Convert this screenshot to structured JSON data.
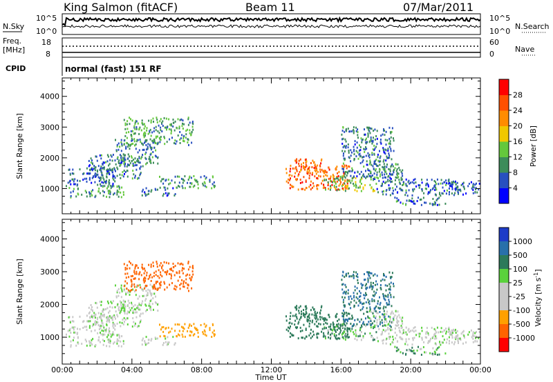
{
  "chart_data": {
    "title": {
      "station": "King Salmon (fitACF)",
      "beam": "Beam 11",
      "date": "07/Mar/2011"
    },
    "noise_panel": {
      "left_label": "N.Sky",
      "right_label": "N.Search",
      "left_ticks": [
        "10^5",
        "10^0"
      ],
      "right_ticks": [
        "10^5",
        "10^0"
      ]
    },
    "freq_panel": {
      "left_label_1": "Freq.",
      "left_label_2": "[MHz]",
      "right_label": "Nave",
      "left_ticks": [
        "18",
        "8"
      ],
      "right_ticks": [
        "60",
        "0"
      ]
    },
    "cpid_panel": {
      "label": "CPID",
      "text": "normal (fast) 151 RF"
    },
    "x_axis": {
      "label": "Time UT",
      "tick_labels": [
        "00:00",
        "04:00",
        "08:00",
        "12:00",
        "16:00",
        "20:00",
        "00:00"
      ],
      "range_hours": [
        0,
        24
      ]
    },
    "y_axis": {
      "label": "Slant Range [km]",
      "tick_labels": [
        "1000",
        "2000",
        "3000",
        "4000"
      ],
      "range_km": [
        180,
        4600
      ]
    },
    "power_panel": {
      "type": "heatmap",
      "colorbar_label": "Power [dB]",
      "colorbar_ticks": [
        "4",
        "8",
        "12",
        "16",
        "20",
        "24",
        "28"
      ],
      "colors": [
        "#0000ff",
        "#2850c0",
        "#3c8c5a",
        "#64c83c",
        "#f0c800",
        "#ff8c00",
        "#ff5000",
        "#ff0000"
      ]
    },
    "velocity_panel": {
      "type": "heatmap",
      "colorbar_label": "Velocity [m s",
      "colorbar_label_sup": "-1",
      "colorbar_label_end": "]",
      "colorbar_ticks": [
        "1000",
        "500",
        "100",
        "25",
        "-25",
        "-100",
        "-500",
        "-1000"
      ],
      "colors": [
        "#1e3cc8",
        "#2870aa",
        "#2c7a5a",
        "#5ad23c",
        "#c8c8c8",
        "#c8c8c8",
        "#ffa000",
        "#ff6400",
        "#ff0000"
      ]
    },
    "scatter_regions": [
      {
        "t": [
          0.2,
          3.5
        ],
        "r": [
          700,
          1100
        ],
        "power": 11,
        "vel": 0
      },
      {
        "t": [
          0.3,
          3.0
        ],
        "r": [
          1100,
          1700
        ],
        "power": 7,
        "vel": 0
      },
      {
        "t": [
          1.5,
          4.5
        ],
        "r": [
          1300,
          2100
        ],
        "power": 8,
        "vel": 0
      },
      {
        "t": [
          3.0,
          5.5
        ],
        "r": [
          1700,
          2600
        ],
        "power": 9,
        "vel": 0
      },
      {
        "t": [
          3.5,
          7.5
        ],
        "r": [
          2400,
          3300
        ],
        "power": 11,
        "vel": -400
      },
      {
        "t": [
          5.5,
          8.8
        ],
        "r": [
          1000,
          1400
        ],
        "power": 10,
        "vel": -200
      },
      {
        "t": [
          4.5,
          6.5
        ],
        "r": [
          750,
          1000
        ],
        "power": 7,
        "vel": 0
      },
      {
        "t": [
          12.8,
          16.5
        ],
        "r": [
          950,
          1750
        ],
        "power": 25,
        "vel": 120
      },
      {
        "t": [
          13.2,
          15.2
        ],
        "r": [
          1500,
          1950
        ],
        "power": 24,
        "vel": 120
      },
      {
        "t": [
          15.0,
          18.0
        ],
        "r": [
          900,
          1400
        ],
        "power": 14,
        "vel": 60
      },
      {
        "t": [
          16.0,
          19.0
        ],
        "r": [
          1300,
          3000
        ],
        "power": 8,
        "vel": 300
      },
      {
        "t": [
          17.5,
          19.5
        ],
        "r": [
          1200,
          1800
        ],
        "power": 10,
        "vel": 0
      },
      {
        "t": [
          18.0,
          23.0
        ],
        "r": [
          750,
          1300
        ],
        "power": 8,
        "vel": 0
      },
      {
        "t": [
          19.0,
          22.0
        ],
        "r": [
          450,
          700
        ],
        "power": 8,
        "vel": 60
      },
      {
        "t": [
          22.0,
          24.0
        ],
        "r": [
          800,
          1200
        ],
        "power": 7,
        "vel": 0
      }
    ]
  }
}
